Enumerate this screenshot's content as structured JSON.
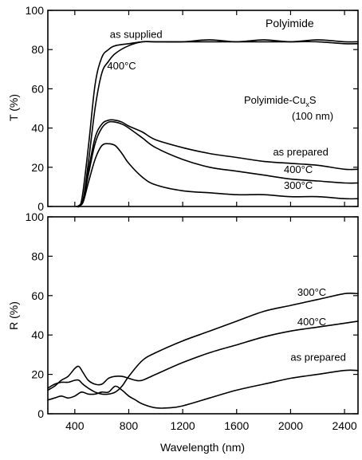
{
  "chart_data": [
    {
      "type": "line",
      "title": "Polyimide",
      "subtitle_line1": "Polyimide-Cu",
      "subtitle_sub": "x",
      "subtitle_line1_end": "S",
      "subtitle_line2": "(100 nm)",
      "ylabel": "T (%)",
      "xlabel": "",
      "xlim": [
        200,
        2500
      ],
      "ylim": [
        0,
        100
      ],
      "yticks": [
        0,
        20,
        40,
        60,
        80,
        100
      ],
      "ytick_labels": [
        "0",
        "20",
        "40",
        "60",
        "80",
        "100"
      ],
      "grid": false,
      "series": [
        {
          "name": "as supplied",
          "x": [
            410,
            450,
            500,
            550,
            600,
            650,
            700,
            800,
            900,
            1000,
            1200,
            1400,
            1600,
            1800,
            2000,
            2200,
            2400,
            2500
          ],
          "y": [
            0,
            3,
            30,
            62,
            76,
            80,
            82,
            83,
            84,
            84,
            84,
            85,
            84,
            85,
            84,
            85,
            84,
            84
          ]
        },
        {
          "name": "400°C",
          "x": [
            420,
            460,
            500,
            550,
            600,
            650,
            700,
            800,
            900,
            1000,
            1200,
            1400,
            1600,
            1800,
            2000,
            2200,
            2400,
            2500
          ],
          "y": [
            0,
            3,
            22,
            50,
            68,
            74,
            78,
            82,
            84,
            84,
            84,
            84,
            84,
            84,
            84,
            84,
            83,
            83
          ]
        },
        {
          "name": "as prepared",
          "x": [
            420,
            460,
            500,
            550,
            600,
            650,
            700,
            750,
            800,
            900,
            1000,
            1200,
            1400,
            1600,
            1800,
            2000,
            2200,
            2400,
            2500
          ],
          "y": [
            0,
            3,
            18,
            35,
            42,
            44,
            44,
            43,
            41,
            38,
            34,
            30,
            27,
            25,
            23,
            22,
            21,
            19,
            19
          ]
        },
        {
          "name": "400°C",
          "x": [
            420,
            460,
            500,
            550,
            600,
            650,
            700,
            750,
            800,
            900,
            1000,
            1200,
            1400,
            1600,
            1800,
            2000,
            2200,
            2400,
            2500
          ],
          "y": [
            0,
            3,
            16,
            32,
            40,
            43,
            43,
            42,
            40,
            35,
            30,
            24,
            20,
            18,
            16,
            14,
            13,
            12,
            12
          ]
        },
        {
          "name": "300°C",
          "x": [
            420,
            460,
            500,
            550,
            600,
            650,
            700,
            750,
            800,
            900,
            1000,
            1200,
            1400,
            1600,
            1800,
            2000,
            2200,
            2400,
            2500
          ],
          "y": [
            0,
            2,
            12,
            24,
            31,
            32,
            31,
            27,
            22,
            15,
            11,
            8,
            7,
            6,
            6,
            5,
            5,
            4,
            4
          ]
        }
      ],
      "annotations": [
        {
          "text": "as supplied",
          "x": 660,
          "y": 86
        },
        {
          "text": "400°C",
          "x": 640,
          "y": 70
        },
        {
          "text": "as prepared",
          "x": 1870,
          "y": 26
        },
        {
          "text": "400°C",
          "x": 1950,
          "y": 17
        },
        {
          "text": "300°C",
          "x": 1950,
          "y": 9
        }
      ]
    },
    {
      "type": "line",
      "title": "",
      "ylabel": "R (%)",
      "xlabel": "Wavelength (nm)",
      "xlim": [
        200,
        2500
      ],
      "ylim": [
        0,
        100
      ],
      "xticks": [
        400,
        800,
        1200,
        1600,
        2000,
        2400
      ],
      "xtick_labels": [
        "400",
        "800",
        "1200",
        "1600",
        "2000",
        "2400"
      ],
      "yticks": [
        0,
        20,
        40,
        60,
        80,
        100
      ],
      "ytick_labels": [
        "0",
        "20",
        "40",
        "60",
        "80",
        "100"
      ],
      "grid": false,
      "series": [
        {
          "name": "300°C",
          "x": [
            200,
            250,
            300,
            350,
            400,
            430,
            460,
            500,
            550,
            600,
            650,
            700,
            750,
            800,
            900,
            1000,
            1200,
            1400,
            1600,
            1800,
            2000,
            2200,
            2400,
            2500
          ],
          "y": [
            13,
            15,
            16,
            16,
            17,
            17,
            15,
            13,
            11,
            10,
            10,
            11,
            14,
            19,
            27,
            31,
            37,
            42,
            47,
            52,
            55,
            58,
            61,
            61
          ]
        },
        {
          "name": "400°C",
          "x": [
            200,
            250,
            300,
            350,
            400,
            430,
            460,
            500,
            550,
            600,
            650,
            700,
            750,
            800,
            850,
            900,
            1000,
            1200,
            1400,
            1600,
            1800,
            2000,
            2200,
            2400,
            2500
          ],
          "y": [
            12,
            14,
            17,
            19,
            23,
            24,
            21,
            17,
            15,
            15,
            18,
            19,
            19,
            18,
            17,
            17,
            20,
            26,
            31,
            35,
            39,
            42,
            44,
            46,
            47
          ]
        },
        {
          "name": "as prepared",
          "x": [
            200,
            250,
            300,
            350,
            400,
            450,
            500,
            550,
            600,
            650,
            700,
            750,
            800,
            850,
            900,
            1000,
            1100,
            1200,
            1400,
            1600,
            1800,
            2000,
            2200,
            2400,
            2500
          ],
          "y": [
            7,
            8,
            9,
            8,
            9,
            11,
            10,
            10,
            11,
            11,
            14,
            12,
            9,
            7,
            5,
            3,
            3,
            4,
            8,
            12,
            15,
            18,
            20,
            22,
            22
          ]
        }
      ],
      "annotations": [
        {
          "text": "300°C",
          "x": 2050,
          "y": 60
        },
        {
          "text": "400°C",
          "x": 2050,
          "y": 45
        },
        {
          "text": "as prepared",
          "x": 2000,
          "y": 27
        }
      ]
    }
  ]
}
